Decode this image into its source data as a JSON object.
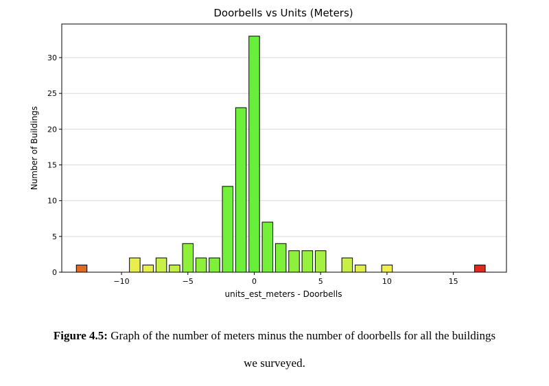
{
  "chart_data": {
    "type": "bar",
    "title": "Doorbells vs Units (Meters)",
    "xlabel": "units_est_meters - Doorbells",
    "ylabel": "Number of Buildings",
    "xlim": [
      -14.5,
      19.0
    ],
    "ylim": [
      0,
      34.7
    ],
    "xticks": [
      -10,
      -5,
      0,
      5,
      10,
      15
    ],
    "xtick_labels": [
      "−10",
      "−5",
      "0",
      "5",
      "10",
      "15"
    ],
    "yticks": [
      0,
      5,
      10,
      15,
      20,
      25,
      30
    ],
    "grid": "horizontal",
    "legend": "none",
    "bars": [
      {
        "x": -13,
        "value": 1,
        "color": "#e06a22"
      },
      {
        "x": -9,
        "value": 2,
        "color": "#e8ef4c"
      },
      {
        "x": -8,
        "value": 1,
        "color": "#e6ef4c"
      },
      {
        "x": -7,
        "value": 2,
        "color": "#c9f046"
      },
      {
        "x": -6,
        "value": 1,
        "color": "#c3f043"
      },
      {
        "x": -5,
        "value": 4,
        "color": "#8ff03a"
      },
      {
        "x": -4,
        "value": 2,
        "color": "#8ff03a"
      },
      {
        "x": -3,
        "value": 2,
        "color": "#7ef03a"
      },
      {
        "x": -2,
        "value": 12,
        "color": "#72f03a"
      },
      {
        "x": -1,
        "value": 23,
        "color": "#6cf03a"
      },
      {
        "x": 0,
        "value": 33,
        "color": "#66f03a"
      },
      {
        "x": 1,
        "value": 7,
        "color": "#72f03a"
      },
      {
        "x": 2,
        "value": 4,
        "color": "#7ef03a"
      },
      {
        "x": 3,
        "value": 3,
        "color": "#8ef03c"
      },
      {
        "x": 4,
        "value": 3,
        "color": "#96f03e"
      },
      {
        "x": 5,
        "value": 3,
        "color": "#a6f043"
      },
      {
        "x": 7,
        "value": 2,
        "color": "#c9ef46"
      },
      {
        "x": 8,
        "value": 1,
        "color": "#e0ef4b"
      },
      {
        "x": 10,
        "value": 1,
        "color": "#eeee4e"
      },
      {
        "x": 17,
        "value": 1,
        "color": "#e02a20"
      }
    ]
  },
  "caption": {
    "label": "Figure 4.5:",
    "line1": " Graph of the number of meters minus the number of doorbells for all the buildings",
    "line2": "we surveyed."
  }
}
